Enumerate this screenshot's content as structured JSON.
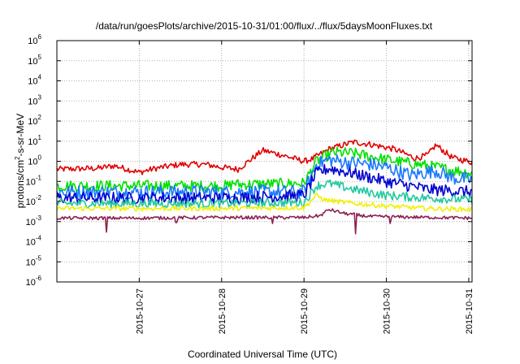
{
  "chart_data": {
    "type": "line",
    "title": "/data/run/goesPlots/archive/2015-10-31/01:00/flux/../flux/5daysMoonFluxes.txt",
    "xlabel": "Coordinated Universal Time (UTC)",
    "ylabel": {
      "base": "protons/cm",
      "sup": "2",
      "rest": "-s-sr-MeV"
    },
    "x_ticks": [
      "2015-10-27",
      "2015-10-28",
      "2015-10-29",
      "2015-10-30",
      "2015-10-31"
    ],
    "x_ticks_day": [
      1,
      2,
      3,
      4,
      5
    ],
    "xlim_days": [
      0.0,
      5.04
    ],
    "ylim_exp": [
      -6,
      6
    ],
    "yscale": "log",
    "y_ticks_exp": [
      -6,
      -5,
      -4,
      -3,
      -2,
      -1,
      0,
      1,
      2,
      3,
      4,
      5,
      6
    ],
    "y_tick_base": "10",
    "grid": true,
    "legend": "none",
    "series": [
      {
        "color": "#e00000",
        "keys": [
          [
            0.0,
            0.4
          ],
          [
            0.5,
            0.45
          ],
          [
            0.7,
            0.6
          ],
          [
            1.0,
            0.28
          ],
          [
            1.2,
            0.45
          ],
          [
            1.5,
            0.7
          ],
          [
            1.8,
            0.7
          ],
          [
            2.0,
            0.5
          ],
          [
            2.2,
            0.4
          ],
          [
            2.5,
            3.5
          ],
          [
            2.7,
            2.2
          ],
          [
            3.0,
            1.0
          ],
          [
            3.1,
            1.3
          ],
          [
            3.3,
            4.0
          ],
          [
            3.6,
            9.0
          ],
          [
            3.8,
            7.0
          ],
          [
            4.1,
            4.0
          ],
          [
            4.35,
            1.4
          ],
          [
            4.5,
            2.0
          ],
          [
            4.6,
            6.5
          ],
          [
            4.8,
            1.5
          ],
          [
            5.04,
            0.9
          ]
        ],
        "noise": 0.15
      },
      {
        "color": "#00e000",
        "keys": [
          [
            0.0,
            0.06
          ],
          [
            1.0,
            0.06
          ],
          [
            2.0,
            0.06
          ],
          [
            2.1,
            0.06
          ],
          [
            2.15,
            0.09
          ],
          [
            2.2,
            0.07
          ],
          [
            3.0,
            0.08
          ],
          [
            3.15,
            1.0
          ],
          [
            3.35,
            2.7
          ],
          [
            3.6,
            2.5
          ],
          [
            4.0,
            1.2
          ],
          [
            4.5,
            0.6
          ],
          [
            5.04,
            0.25
          ]
        ],
        "noise": 0.28
      },
      {
        "color": "#1a78ff",
        "keys": [
          [
            0.0,
            0.03
          ],
          [
            1.0,
            0.03
          ],
          [
            2.0,
            0.03
          ],
          [
            3.0,
            0.03
          ],
          [
            3.15,
            0.7
          ],
          [
            3.3,
            1.2
          ],
          [
            3.5,
            0.9
          ],
          [
            3.8,
            0.7
          ],
          [
            4.0,
            0.5
          ],
          [
            4.3,
            0.2
          ],
          [
            4.6,
            0.35
          ],
          [
            4.8,
            0.15
          ],
          [
            5.04,
            0.12
          ]
        ],
        "noise": 0.35
      },
      {
        "color": "#0000d0",
        "keys": [
          [
            0.0,
            0.015
          ],
          [
            1.0,
            0.015
          ],
          [
            2.0,
            0.015
          ],
          [
            3.0,
            0.02
          ],
          [
            3.15,
            0.25
          ],
          [
            3.3,
            0.45
          ],
          [
            3.6,
            0.25
          ],
          [
            4.0,
            0.1
          ],
          [
            4.5,
            0.04
          ],
          [
            5.04,
            0.03
          ]
        ],
        "noise": 0.3
      },
      {
        "color": "#20c8a0",
        "keys": [
          [
            0.0,
            0.008
          ],
          [
            1.0,
            0.008
          ],
          [
            2.0,
            0.008
          ],
          [
            3.0,
            0.009
          ],
          [
            3.15,
            0.06
          ],
          [
            3.3,
            0.08
          ],
          [
            3.6,
            0.04
          ],
          [
            4.0,
            0.02
          ],
          [
            4.5,
            0.015
          ],
          [
            5.04,
            0.012
          ]
        ],
        "noise": 0.22
      },
      {
        "color": "#f0f000",
        "keys": [
          [
            0.0,
            0.0045
          ],
          [
            1.0,
            0.0045
          ],
          [
            2.0,
            0.0045
          ],
          [
            3.0,
            0.005
          ],
          [
            3.15,
            0.02
          ],
          [
            3.25,
            0.012
          ],
          [
            3.6,
            0.008
          ],
          [
            4.0,
            0.006
          ],
          [
            4.5,
            0.0045
          ],
          [
            5.04,
            0.004
          ]
        ],
        "noise": 0.12
      },
      {
        "color": "#8b2252",
        "keys": [
          [
            0.0,
            0.0015
          ],
          [
            1.0,
            0.0015
          ],
          [
            2.0,
            0.0016
          ],
          [
            3.0,
            0.0016
          ],
          [
            3.2,
            0.002
          ],
          [
            3.3,
            0.004
          ],
          [
            3.5,
            0.0025
          ],
          [
            3.8,
            0.0018
          ],
          [
            5.04,
            0.0015
          ]
        ],
        "noise": 0.08,
        "spikes": [
          [
            0.6,
            0.0003
          ],
          [
            1.45,
            0.0009
          ],
          [
            2.62,
            0.0008
          ],
          [
            3.63,
            0.00025
          ],
          [
            4.05,
            0.0008
          ]
        ]
      }
    ]
  }
}
